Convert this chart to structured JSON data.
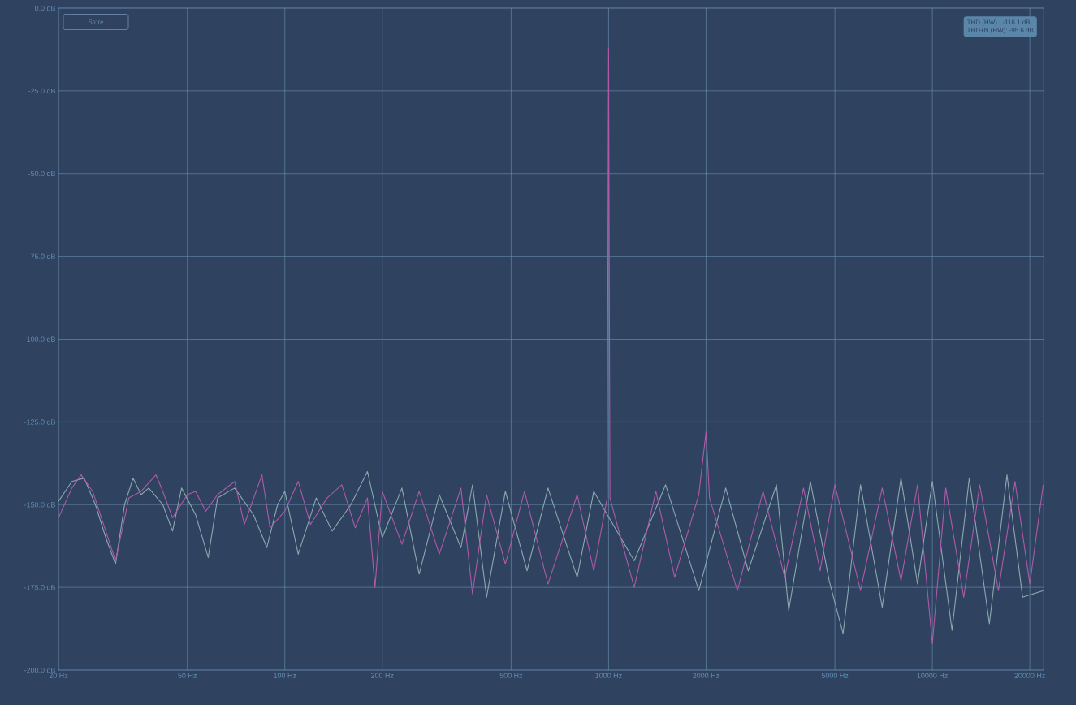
{
  "chart_data": {
    "type": "line",
    "xlim": [
      20,
      22050
    ],
    "ylim": [
      -200,
      0
    ],
    "log": "x",
    "grid": true,
    "marker": "none",
    "line_style": "solid",
    "xticks": [
      {
        "value": 20,
        "label": "20 Hz"
      },
      {
        "value": 50,
        "label": "50 Hz"
      },
      {
        "value": 100,
        "label": "100 Hz"
      },
      {
        "value": 200,
        "label": "200 Hz"
      },
      {
        "value": 500,
        "label": "500 Hz"
      },
      {
        "value": 1000,
        "label": "1000 Hz"
      },
      {
        "value": 2000,
        "label": "2000 Hz"
      },
      {
        "value": 5000,
        "label": "5000 Hz"
      },
      {
        "value": 10000,
        "label": "10000 Hz"
      },
      {
        "value": 20000,
        "label": "20000 Hz"
      }
    ],
    "yticks": [
      {
        "value": 0,
        "label": "0.0 dB"
      },
      {
        "value": -25,
        "label": "-25.0 dB"
      },
      {
        "value": -50,
        "label": "-50.0 dB"
      },
      {
        "value": -75,
        "label": "-75.0 dB"
      },
      {
        "value": -100,
        "label": "-100.0 dB"
      },
      {
        "value": -125,
        "label": "-125.0 dB"
      },
      {
        "value": -150,
        "label": "-150.0 dB"
      },
      {
        "value": -175,
        "label": "-175.0 dB"
      },
      {
        "value": -200,
        "label": "-200.0 dB"
      }
    ],
    "annotations": [
      "Store",
      "THD (HW) : -116.1 dB",
      "THD+N (HW): -95.6 dB"
    ],
    "series": [
      {
        "color": "#8aa9ad",
        "x": [
          20,
          22,
          24,
          26,
          28,
          30,
          32,
          34,
          36,
          38,
          42,
          45,
          48,
          53,
          58,
          62,
          70,
          80,
          88,
          95,
          100,
          110,
          125,
          140,
          160,
          180,
          200,
          230,
          260,
          300,
          350,
          380,
          420,
          480,
          560,
          650,
          800,
          900,
          1200,
          1500,
          1900,
          2300,
          2700,
          3300,
          3600,
          4200,
          4800,
          5300,
          6000,
          7000,
          8000,
          9000,
          10000,
          11500,
          13000,
          15000,
          17000,
          19000,
          22000
        ],
        "values": [
          -149,
          -143,
          -142,
          -150,
          -160,
          -168,
          -150,
          -142,
          -147,
          -145,
          -150,
          -158,
          -145,
          -153,
          -166,
          -148,
          -145,
          -153,
          -163,
          -150,
          -146,
          -165,
          -148,
          -158,
          -150,
          -140,
          -160,
          -145,
          -171,
          -147,
          -163,
          -144,
          -178,
          -146,
          -170,
          -145,
          -172,
          -146,
          -167,
          -144,
          -176,
          -145,
          -170,
          -144,
          -182,
          -143,
          -173,
          -189,
          -144,
          -181,
          -142,
          -174,
          -143,
          -188,
          -142,
          -186,
          -141,
          -178,
          -176
        ]
      },
      {
        "color": "#b05aa8",
        "x": [
          20,
          22,
          23.5,
          25.5,
          28,
          30,
          33,
          36,
          40,
          42,
          45,
          50,
          53,
          57,
          62,
          70,
          75,
          85,
          90,
          100,
          110,
          120,
          135,
          150,
          165,
          180,
          190,
          200,
          230,
          260,
          300,
          350,
          380,
          420,
          480,
          550,
          650,
          800,
          900,
          990,
          1000,
          1010,
          1200,
          1400,
          1600,
          1900,
          2000,
          2050,
          2500,
          3000,
          3500,
          4000,
          4500,
          5000,
          6000,
          7000,
          8000,
          9000,
          10000,
          11000,
          12500,
          14000,
          16000,
          18000,
          20000,
          22000
        ],
        "values": [
          -154,
          -145,
          -141,
          -146,
          -158,
          -167,
          -148,
          -146,
          -141,
          -146,
          -154,
          -147,
          -146,
          -152,
          -147,
          -143,
          -156,
          -141,
          -157,
          -152,
          -143,
          -156,
          -148,
          -144,
          -157,
          -148,
          -175,
          -146,
          -162,
          -146,
          -165,
          -145,
          -177,
          -147,
          -168,
          -146,
          -174,
          -147,
          -170,
          -148,
          -12,
          -148,
          -175,
          -146,
          -172,
          -147,
          -128,
          -148,
          -176,
          -146,
          -172,
          -145,
          -170,
          -144,
          -176,
          -145,
          -173,
          -144,
          -192,
          -145,
          -178,
          -144,
          -176,
          -143,
          -174,
          -144
        ]
      }
    ]
  }
}
